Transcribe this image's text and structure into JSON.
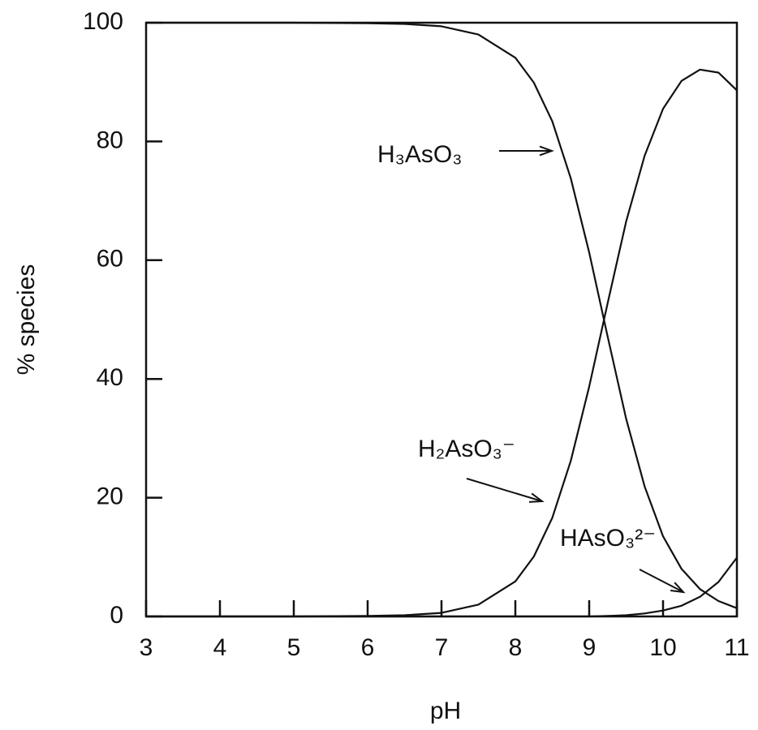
{
  "chart_data": {
    "type": "line",
    "x_label": "pH",
    "y_label": "% species",
    "x": [
      3,
      4,
      5,
      6,
      6.5,
      7,
      7.5,
      8,
      8.25,
      8.5,
      8.75,
      9,
      9.25,
      9.5,
      9.75,
      10,
      10.25,
      10.5,
      10.75,
      11
    ],
    "series": [
      {
        "name": "H₃AsO₃",
        "color": "#111111",
        "values": [
          100,
          100,
          100,
          99.9,
          99.8,
          99.4,
          98.0,
          94.1,
          89.9,
          83.4,
          73.8,
          61.3,
          47.1,
          33.3,
          21.9,
          13.5,
          8.0,
          4.6,
          2.6,
          1.4
        ]
      },
      {
        "name": "H₂AsO₃⁻",
        "color": "#111111",
        "values": [
          0,
          0,
          0,
          0.1,
          0.2,
          0.6,
          2.0,
          5.9,
          10.1,
          16.6,
          26.2,
          38.7,
          52.8,
          66.5,
          77.6,
          85.5,
          90.2,
          92.1,
          91.6,
          88.6
        ]
      },
      {
        "name": "HAsO₃²⁻",
        "color": "#111111",
        "values": [
          0,
          0,
          0,
          0,
          0,
          0,
          0,
          0,
          0,
          0,
          0,
          0,
          0.1,
          0.2,
          0.5,
          1.0,
          1.8,
          3.3,
          5.8,
          9.9
        ]
      }
    ],
    "xlim": [
      3,
      11
    ],
    "xticks": [
      3,
      4,
      5,
      6,
      7,
      8,
      9,
      10,
      11
    ],
    "ylim": [
      0,
      100
    ],
    "yticks": [
      0,
      20,
      40,
      60,
      80,
      100
    ]
  }
}
